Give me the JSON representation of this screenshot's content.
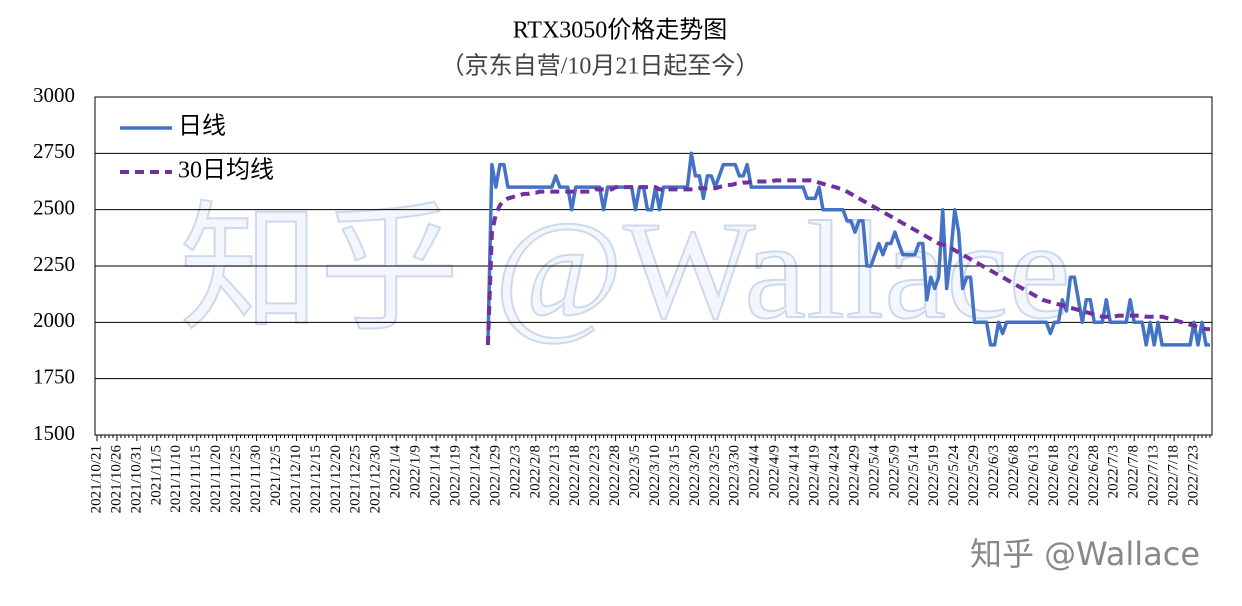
{
  "chart_data": {
    "type": "line",
    "title": "RTX3050价格走势图",
    "subtitle": "（京东自营/10月21日起至今）",
    "watermark": "知乎 @Wallace",
    "credit": "知乎 @Wallace",
    "categories": [
      "2021/10/21",
      null,
      null,
      null,
      null,
      "2021/10/26",
      null,
      null,
      null,
      null,
      "2021/10/31",
      null,
      null,
      null,
      null,
      "2021/11/5",
      null,
      null,
      null,
      null,
      "2021/11/10",
      null,
      null,
      null,
      null,
      "2021/11/15",
      null,
      null,
      null,
      null,
      "2021/11/20",
      null,
      null,
      null,
      null,
      "2021/11/25",
      null,
      null,
      null,
      null,
      "2021/11/30",
      null,
      null,
      null,
      null,
      "2021/12/5",
      null,
      null,
      null,
      null,
      "2021/12/10",
      null,
      null,
      null,
      null,
      "2021/12/15",
      null,
      null,
      null,
      null,
      "2021/12/20",
      null,
      null,
      null,
      null,
      "2021/12/25",
      null,
      null,
      null,
      null,
      "2021/12/30",
      null,
      null,
      null,
      null,
      "2022/1/4",
      null,
      null,
      null,
      null,
      "2022/1/9",
      null,
      null,
      null,
      null,
      "2022/1/14",
      null,
      null,
      null,
      null,
      "2022/1/19",
      null,
      null,
      null,
      null,
      "2022/1/24",
      null,
      null,
      null,
      null,
      "2022/1/29",
      null,
      null,
      null,
      null,
      "2022/2/3",
      null,
      null,
      null,
      null,
      "2022/2/8",
      null,
      null,
      null,
      null,
      "2022/2/13",
      null,
      null,
      null,
      null,
      "2022/2/18",
      null,
      null,
      null,
      null,
      "2022/2/23",
      null,
      null,
      null,
      null,
      "2022/2/28",
      null,
      null,
      null,
      null,
      "2022/3/5",
      null,
      null,
      null,
      null,
      "2022/3/10",
      null,
      null,
      null,
      null,
      "2022/3/15",
      null,
      null,
      null,
      null,
      "2022/3/20",
      null,
      null,
      null,
      null,
      "2022/3/25",
      null,
      null,
      null,
      null,
      "2022/3/30",
      null,
      null,
      null,
      null,
      "2022/4/4",
      null,
      null,
      null,
      null,
      "2022/4/9",
      null,
      null,
      null,
      null,
      "2022/4/14",
      null,
      null,
      null,
      null,
      "2022/4/19",
      null,
      null,
      null,
      null,
      "2022/4/24",
      null,
      null,
      null,
      null,
      "2022/4/29",
      null,
      null,
      null,
      null,
      "2022/5/4",
      null,
      null,
      null,
      null,
      "2022/5/9",
      null,
      null,
      null,
      null,
      "2022/5/14",
      null,
      null,
      null,
      null,
      "2022/5/19",
      null,
      null,
      null,
      null,
      "2022/5/24",
      null,
      null,
      null,
      null,
      "2022/5/29",
      null,
      null,
      null,
      null,
      "2022/6/3",
      null,
      null,
      null,
      null,
      "2022/6/8",
      null,
      null,
      null,
      null,
      "2022/6/13",
      null,
      null,
      null,
      null,
      "2022/6/18",
      null,
      null,
      null,
      null,
      "2022/6/23",
      null,
      null,
      null,
      null,
      "2022/6/28",
      null,
      null,
      null,
      null,
      "2022/7/3",
      null,
      null,
      null,
      null,
      "2022/7/8",
      null,
      null,
      null,
      null,
      "2022/7/13",
      null,
      null,
      null,
      null,
      "2022/7/18",
      null,
      null,
      null,
      null,
      "2022/7/23",
      null,
      null,
      null,
      null
    ],
    "series": [
      {
        "name": "日线",
        "color": "#4472c4",
        "dash": false,
        "values": [
          null,
          null,
          null,
          null,
          null,
          null,
          null,
          null,
          null,
          null,
          null,
          null,
          null,
          null,
          null,
          null,
          null,
          null,
          null,
          null,
          null,
          null,
          null,
          null,
          null,
          null,
          null,
          null,
          null,
          null,
          null,
          null,
          null,
          null,
          null,
          null,
          null,
          null,
          null,
          null,
          null,
          null,
          null,
          null,
          null,
          null,
          null,
          null,
          null,
          null,
          null,
          null,
          null,
          null,
          null,
          null,
          null,
          null,
          null,
          null,
          null,
          null,
          null,
          null,
          null,
          null,
          null,
          null,
          null,
          null,
          null,
          null,
          null,
          null,
          null,
          null,
          null,
          null,
          null,
          null,
          null,
          null,
          null,
          null,
          null,
          null,
          null,
          null,
          null,
          null,
          null,
          null,
          null,
          null,
          null,
          null,
          null,
          null,
          1900,
          2700,
          2600,
          2700,
          2700,
          2600,
          2600,
          2600,
          2600,
          2600,
          2600,
          2600,
          2600,
          2600,
          2600,
          2600,
          2600,
          2650,
          2600,
          2600,
          2600,
          2500,
          2600,
          2600,
          2600,
          2600,
          2600,
          2600,
          2600,
          2500,
          2600,
          2600,
          2600,
          2600,
          2600,
          2600,
          2600,
          2500,
          2600,
          2600,
          2500,
          2500,
          2600,
          2500,
          2600,
          2600,
          2600,
          2600,
          2600,
          2600,
          2600,
          2750,
          2650,
          2650,
          2550,
          2650,
          2650,
          2600,
          2650,
          2700,
          2700,
          2700,
          2700,
          2650,
          2650,
          2700,
          2600,
          2600,
          2600,
          2600,
          2600,
          2600,
          2600,
          2600,
          2600,
          2600,
          2600,
          2600,
          2600,
          2600,
          2550,
          2550,
          2550,
          2600,
          2500,
          2500,
          2500,
          2500,
          2500,
          2500,
          2450,
          2450,
          2400,
          2450,
          2450,
          2250,
          2250,
          2300,
          2350,
          2300,
          2350,
          2350,
          2400,
          2350,
          2300,
          2300,
          2300,
          2300,
          2350,
          2350,
          2100,
          2200,
          2150,
          2200,
          2500,
          2150,
          2300,
          2500,
          2400,
          2150,
          2200,
          2200,
          2000,
          2000,
          2000,
          2000,
          1900,
          1900,
          2000,
          1950,
          2000,
          2000,
          2000,
          2000,
          2000,
          2000,
          2000,
          2000,
          2000,
          2000,
          2000,
          1950,
          2000,
          2000,
          2100,
          2050,
          2200,
          2200,
          2100,
          2000,
          2100,
          2100,
          2000,
          2000,
          2000,
          2100,
          2000,
          2000,
          2000,
          2000,
          2000,
          2100,
          2000,
          2000,
          2000,
          1900,
          2000,
          1900,
          2000,
          1900,
          1900,
          1900,
          1900,
          1900,
          1900,
          1900,
          1900,
          2000,
          1900,
          2000,
          1900,
          1900
        ]
      },
      {
        "name": "30日均线",
        "color": "#7030a0",
        "dash": true,
        "values": [
          null,
          null,
          null,
          null,
          null,
          null,
          null,
          null,
          null,
          null,
          null,
          null,
          null,
          null,
          null,
          null,
          null,
          null,
          null,
          null,
          null,
          null,
          null,
          null,
          null,
          null,
          null,
          null,
          null,
          null,
          null,
          null,
          null,
          null,
          null,
          null,
          null,
          null,
          null,
          null,
          null,
          null,
          null,
          null,
          null,
          null,
          null,
          null,
          null,
          null,
          null,
          null,
          null,
          null,
          null,
          null,
          null,
          null,
          null,
          null,
          null,
          null,
          null,
          null,
          null,
          null,
          null,
          null,
          null,
          null,
          null,
          null,
          null,
          null,
          null,
          null,
          null,
          null,
          null,
          null,
          null,
          null,
          null,
          null,
          null,
          null,
          null,
          null,
          null,
          null,
          null,
          null,
          null,
          null,
          null,
          null,
          null,
          null,
          1900,
          2400,
          2480,
          2520,
          2540,
          2550,
          2555,
          2560,
          2565,
          2570,
          2570,
          2575,
          2575,
          2580,
          2580,
          2580,
          2580,
          2580,
          2580,
          2580,
          2580,
          2580,
          2580,
          2580,
          2580,
          2580,
          2580,
          2590,
          2590,
          2590,
          2590,
          2590,
          2600,
          2600,
          2600,
          2600,
          2600,
          2600,
          2600,
          2600,
          2600,
          2600,
          2600,
          2590,
          2590,
          2590,
          2590,
          2590,
          2590,
          2590,
          2590,
          2590,
          2590,
          2595,
          2595,
          2595,
          2595,
          2595,
          2600,
          2605,
          2610,
          2610,
          2615,
          2615,
          2620,
          2620,
          2625,
          2625,
          2625,
          2625,
          2625,
          2625,
          2630,
          2630,
          2630,
          2630,
          2630,
          2630,
          2630,
          2630,
          2630,
          2630,
          2625,
          2620,
          2615,
          2610,
          2605,
          2600,
          2595,
          2590,
          2580,
          2570,
          2560,
          2550,
          2540,
          2530,
          2520,
          2510,
          2500,
          2490,
          2480,
          2470,
          2460,
          2450,
          2440,
          2430,
          2420,
          2410,
          2400,
          2390,
          2380,
          2370,
          2360,
          2350,
          2345,
          2340,
          2330,
          2320,
          2310,
          2300,
          2290,
          2280,
          2270,
          2260,
          2250,
          2240,
          2230,
          2220,
          2210,
          2200,
          2190,
          2180,
          2170,
          2160,
          2150,
          2140,
          2130,
          2120,
          2110,
          2100,
          2095,
          2090,
          2085,
          2080,
          2075,
          2070,
          2065,
          2060,
          2055,
          2050,
          2045,
          2040,
          2035,
          2030,
          2025,
          2025,
          2025,
          2025,
          2030,
          2030,
          2030,
          2030,
          2030,
          2030,
          2030,
          2025,
          2025,
          2025,
          2025,
          2025,
          2020,
          2015,
          2010,
          2005,
          2000,
          1995,
          1990,
          1985,
          1980,
          1975,
          1970,
          1970
        ]
      }
    ],
    "ylim": [
      1500,
      3000
    ],
    "yticks": [
      1500,
      1750,
      2000,
      2250,
      2500,
      2750,
      3000
    ],
    "grid": true,
    "legend": "top-left"
  }
}
